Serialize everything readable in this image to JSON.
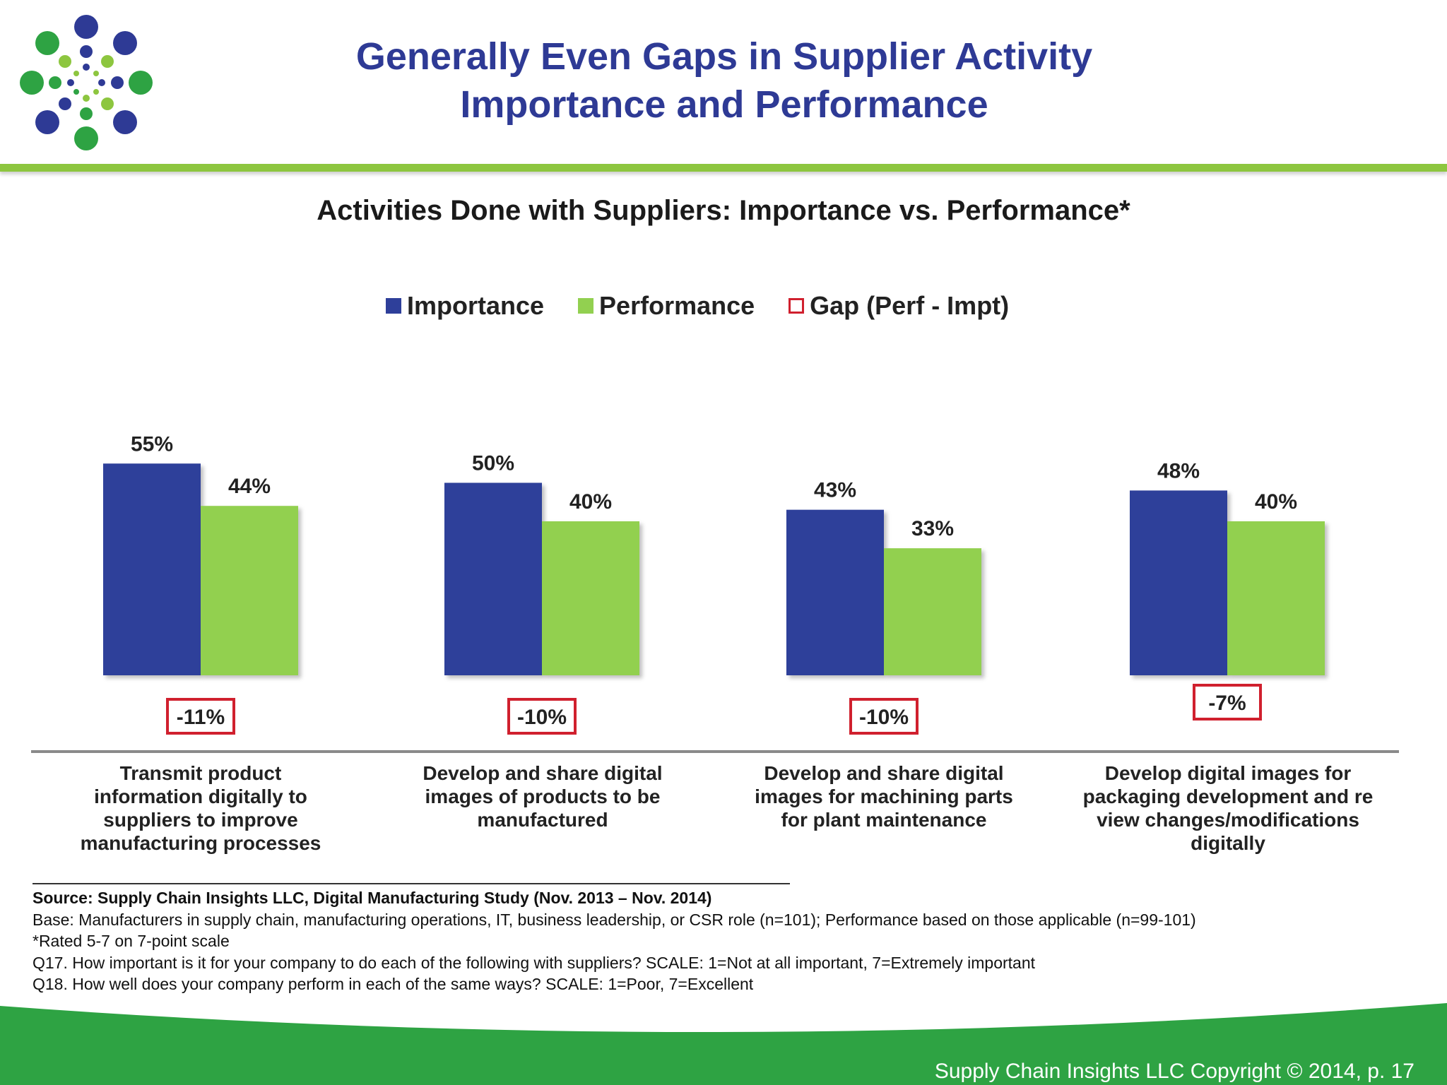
{
  "slide": {
    "title_line1": "Generally Even Gaps in Supplier Activity",
    "title_line2": "Importance and Performance"
  },
  "colors": {
    "title": "#2e3a95",
    "importance": "#2e3f9a",
    "performance": "#92d050",
    "gap_border": "#d0202e",
    "header_rule": "#8dc63f",
    "footer_band": "#2ea343"
  },
  "legend": {
    "importance": "Importance",
    "performance": "Performance",
    "gap": "Gap (Perf - Impt)"
  },
  "chart_data": {
    "type": "bar",
    "title": "Activities Done with Suppliers: Importance vs. Performance*",
    "categories": [
      "Transmit product information digitally to suppliers to improve manufacturing processes",
      "Develop and share digital images of products to be manufactured",
      "Develop and share digital images for machining parts for plant maintenance",
      "Develop digital images for packaging development and re view changes/modifications digitally"
    ],
    "category_lines": [
      [
        "Transmit product",
        "information digitally to",
        "suppliers to improve",
        "manufacturing processes"
      ],
      [
        "Develop and share digital",
        "images of products to be",
        "manufactured"
      ],
      [
        "Develop and share digital",
        "images for machining parts",
        "for plant maintenance"
      ],
      [
        "Develop digital images for",
        "packaging development and re",
        "view changes/modifications",
        "digitally"
      ]
    ],
    "series": [
      {
        "name": "Importance",
        "values": [
          55,
          50,
          43,
          48
        ],
        "labels": [
          "55%",
          "50%",
          "43%",
          "48%"
        ]
      },
      {
        "name": "Performance",
        "values": [
          44,
          40,
          33,
          40
        ],
        "labels": [
          "44%",
          "40%",
          "33%",
          "40%"
        ]
      }
    ],
    "gap": {
      "name": "Gap (Perf - Impt)",
      "values": [
        -11,
        -10,
        -10,
        -7
      ],
      "labels": [
        "-11%",
        "-10%",
        "-10%",
        "-7%"
      ]
    },
    "ylim": [
      0,
      60
    ],
    "grid": false,
    "legend_position": "top-center"
  },
  "source": {
    "line1": "Source:  Supply Chain Insights LLC, Digital Manufacturing Study (Nov. 2013 – Nov. 2014)",
    "line2": "Base: Manufacturers in supply chain, manufacturing operations, IT, business leadership, or CSR role (n=101); Performance based on those applicable (n=99-101)",
    "line3": "*Rated 5-7 on 7-point scale",
    "line4": "Q17. How important is it for your company to do each of the following with suppliers? SCALE: 1=Not at all important, 7=Extremely important",
    "line5": "Q18. How well does your company perform in each of the same ways? SCALE: 1=Poor, 7=Excellent"
  },
  "footer": {
    "text": "Supply Chain Insights LLC Copyright © 2014, p. 17"
  }
}
